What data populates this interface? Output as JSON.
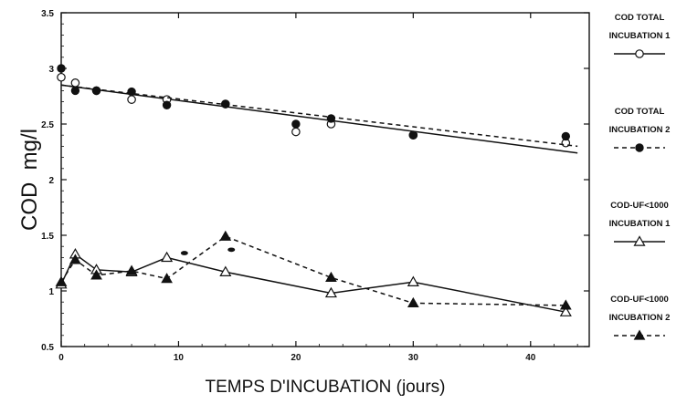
{
  "chart_data": {
    "type": "scatter",
    "xlabel": "TEMPS D'INCUBATION (jours)",
    "ylabel": "COD  mg/l",
    "xlim": [
      0,
      45
    ],
    "ylim": [
      0.5,
      3.5
    ],
    "xticks": [
      0,
      10,
      20,
      30,
      40
    ],
    "yticks": [
      0.5,
      1,
      1.5,
      2,
      2.5,
      3,
      3.5
    ],
    "xtick_labels": [
      "0",
      "10",
      "20",
      "30",
      "40"
    ],
    "ytick_labels": [
      "0.5",
      "1",
      "1.5",
      "2",
      "2.5",
      "3",
      "3.5"
    ],
    "grid": false,
    "legend_position": "right",
    "series": [
      {
        "name": "COD TOTAL INCUBATION 1",
        "legend_lines": [
          "COD TOTAL",
          "INCUBATION 1"
        ],
        "marker": "circle-open",
        "line": "solid",
        "points": [
          [
            0,
            2.92
          ],
          [
            1.2,
            2.87
          ],
          [
            3,
            2.8
          ],
          [
            6,
            2.72
          ],
          [
            9,
            2.72
          ],
          [
            14,
            2.68
          ],
          [
            20,
            2.43
          ],
          [
            23,
            2.5
          ],
          [
            30,
            2.4
          ],
          [
            43,
            2.33
          ]
        ],
        "fit": [
          [
            0,
            2.85
          ],
          [
            44,
            2.24
          ]
        ]
      },
      {
        "name": "COD TOTAL INCUBATION 2",
        "legend_lines": [
          "COD TOTAL",
          "INCUBATION 2"
        ],
        "marker": "circle-filled",
        "line": "dashed",
        "points": [
          [
            0,
            3.0
          ],
          [
            1.2,
            2.8
          ],
          [
            3,
            2.8
          ],
          [
            6,
            2.79
          ],
          [
            9,
            2.67
          ],
          [
            14,
            2.68
          ],
          [
            20,
            2.5
          ],
          [
            23,
            2.55
          ],
          [
            30,
            2.4
          ],
          [
            43,
            2.39
          ]
        ],
        "fit": [
          [
            0,
            2.85
          ],
          [
            44,
            2.3
          ]
        ]
      },
      {
        "name": "COD-UF<1000 INCUBATION 1",
        "legend_lines": [
          "COD-UF<1000",
          "INCUBATION 1"
        ],
        "marker": "triangle-open",
        "line": "solid",
        "points": [
          [
            0,
            1.06
          ],
          [
            1.2,
            1.33
          ],
          [
            3,
            1.19
          ],
          [
            6,
            1.17
          ],
          [
            9,
            1.3
          ],
          [
            14,
            1.17
          ],
          [
            23,
            0.98
          ],
          [
            30,
            1.08
          ],
          [
            43,
            0.81
          ]
        ]
      },
      {
        "name": "COD-UF<1000 INCUBATION 2",
        "legend_lines": [
          "COD-UF<1000",
          "INCUBATION 2"
        ],
        "marker": "triangle-filled",
        "line": "dashed",
        "points": [
          [
            0,
            1.08
          ],
          [
            1.2,
            1.28
          ],
          [
            3,
            1.14
          ],
          [
            6,
            1.18
          ],
          [
            9,
            1.11
          ],
          [
            14,
            1.49
          ],
          [
            23,
            1.12
          ],
          [
            30,
            0.89
          ],
          [
            43,
            0.87
          ]
        ]
      }
    ],
    "extra_marks": [
      [
        10.5,
        1.34
      ],
      [
        14.5,
        1.37
      ]
    ]
  }
}
